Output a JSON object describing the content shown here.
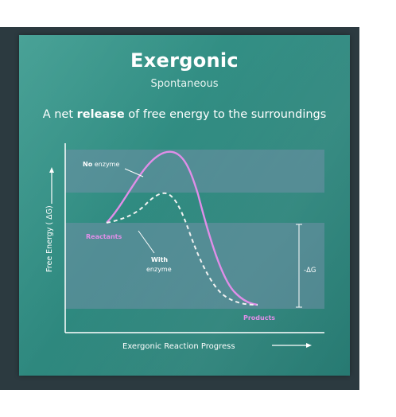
{
  "header": {
    "title": "Exergonic",
    "subtitle": "Spontaneous",
    "tagline_prefix": "A net ",
    "tagline_bold": "release",
    "tagline_suffix": " of free energy to the surroundings"
  },
  "diagram": {
    "y_axis_label": "Free Energy ( ΔG)",
    "x_axis_label": "Exergonic Reaction Progress",
    "no_enzyme_bold": "No",
    "no_enzyme_rest": " enzyme",
    "with_enzyme_line1": "With",
    "with_enzyme_line2": "enzyme",
    "reactants_label": "Reactants",
    "products_label": "Products",
    "delta_g_label": "-ΔG",
    "colors": {
      "no_enzyme_curve": "#e08ee8",
      "with_enzyme_curve": "#f2f2f2",
      "band": "#6f8fa6",
      "label_pink": "#e08ee8"
    }
  }
}
